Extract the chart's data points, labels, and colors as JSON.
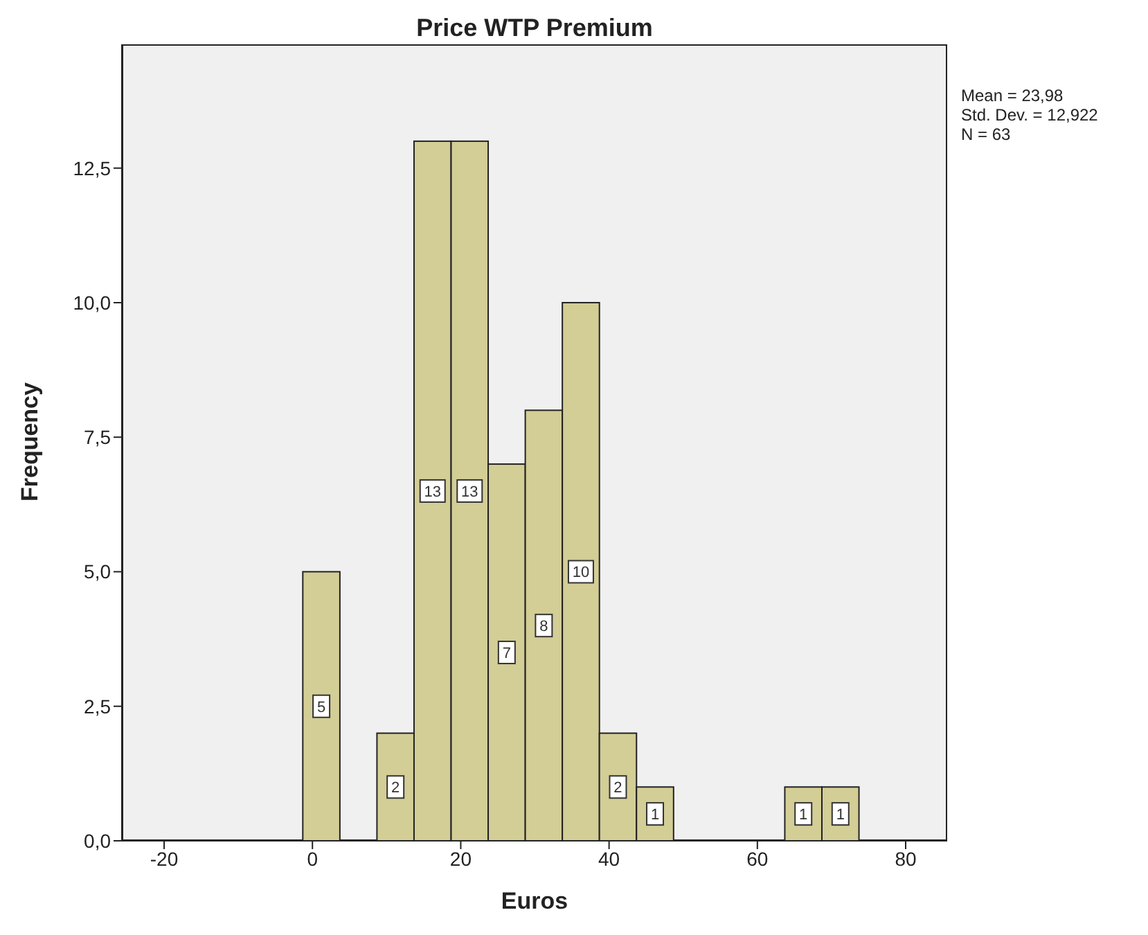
{
  "chart_data": {
    "type": "histogram",
    "title": "Price WTP Premium",
    "xlabel": "Euros",
    "ylabel": "Frequency",
    "bins": [
      -1.3,
      3.7,
      8.7,
      13.7,
      18.7,
      23.7,
      28.7,
      33.7,
      38.7,
      43.7,
      48.7,
      53.7,
      58.7,
      63.7,
      68.7,
      73.7
    ],
    "values": [
      5,
      0,
      2,
      13,
      13,
      7,
      8,
      10,
      2,
      1,
      0,
      0,
      0,
      1,
      1
    ],
    "color": "#d3cd96",
    "xlim": [
      -25.7,
      85.6
    ],
    "xticks": [
      -20,
      0,
      20,
      40,
      60,
      80
    ],
    "ylim": [
      0,
      14.8
    ],
    "yticks": [
      {
        "value": 0,
        "label": "0,0"
      },
      {
        "value": 2.5,
        "label": "2,5"
      },
      {
        "value": 5,
        "label": "5,0"
      },
      {
        "value": 7.5,
        "label": "7,5"
      },
      {
        "value": 10,
        "label": "10,0"
      },
      {
        "value": 12.5,
        "label": "12,5"
      }
    ],
    "value_labels": [
      "5",
      null,
      "2",
      "13",
      "13",
      "7",
      "8",
      "10",
      "2",
      "1",
      null,
      null,
      null,
      "1",
      "1"
    ],
    "annotations": [
      "Mean = 23,98",
      "Std. Dev. = 12,922",
      "N = 63"
    ]
  }
}
